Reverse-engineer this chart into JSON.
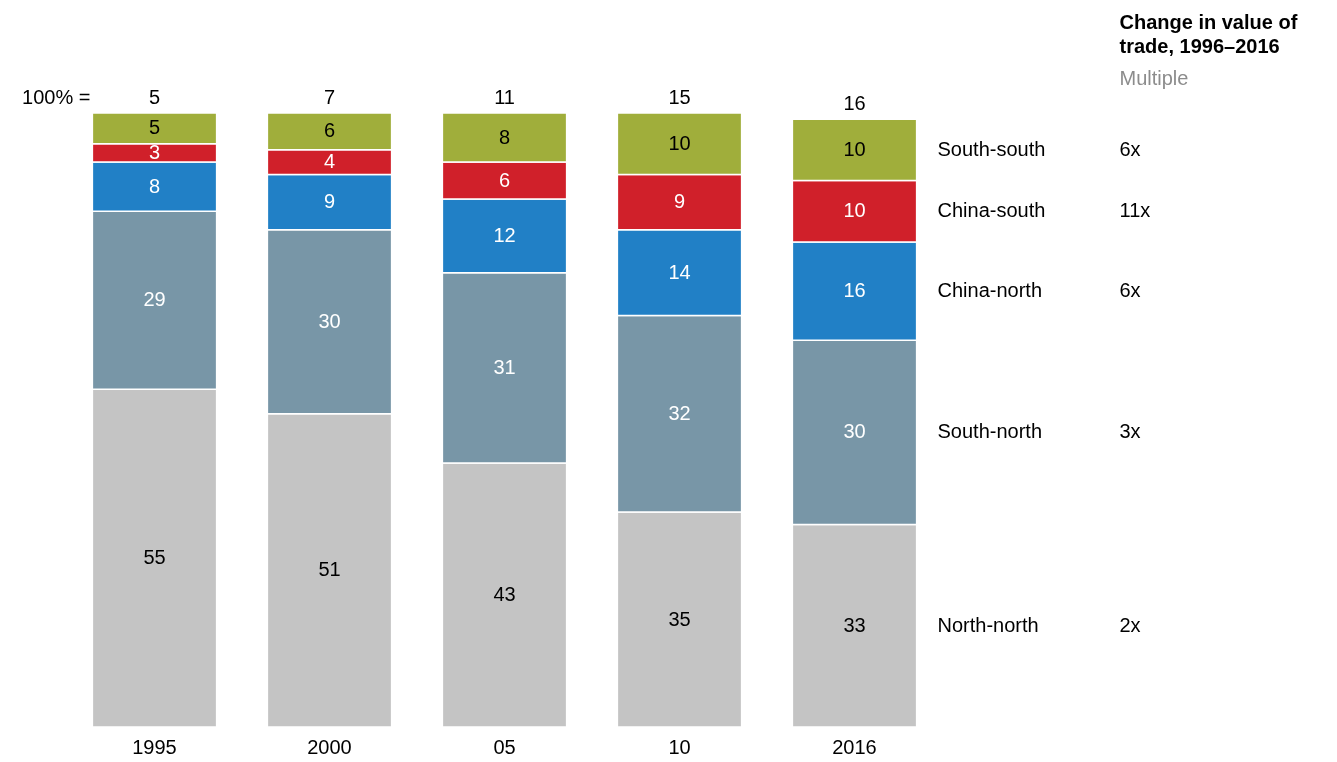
{
  "chart_data": {
    "type": "bar",
    "stacked": true,
    "data_labels": true,
    "tick_labels": "x",
    "ylim": [
      0,
      100
    ],
    "categories": [
      "1995",
      "2000",
      "05",
      "10",
      "2016"
    ],
    "series": [
      {
        "name": "North-north",
        "color": "#c4c4c4",
        "values": [
          55,
          51,
          43,
          35,
          33
        ]
      },
      {
        "name": "South-north",
        "color": "#7896a7",
        "values": [
          29,
          30,
          31,
          32,
          30
        ]
      },
      {
        "name": "China-north",
        "color": "#2180c6",
        "values": [
          8,
          9,
          12,
          14,
          16
        ]
      },
      {
        "name": "China-south",
        "color": "#d0202a",
        "values": [
          3,
          4,
          6,
          9,
          10
        ]
      },
      {
        "name": "South-south",
        "color": "#a0ae3b",
        "values": [
          5,
          6,
          8,
          10,
          10
        ]
      }
    ],
    "annotations": [
      "100% =",
      "Change in value of trade, 1996–2016",
      "Multiple",
      "2x",
      "3x",
      "6x",
      "11x",
      "6x",
      {
        "text": "5",
        "x": "1995",
        "y": 100
      },
      {
        "text": "7",
        "x": "2000",
        "y": 100
      },
      {
        "text": "11",
        "x": "05",
        "y": 100
      },
      {
        "text": "15",
        "x": "10",
        "y": 100
      },
      {
        "text": "16",
        "x": "2016",
        "y": 99
      }
    ]
  }
}
